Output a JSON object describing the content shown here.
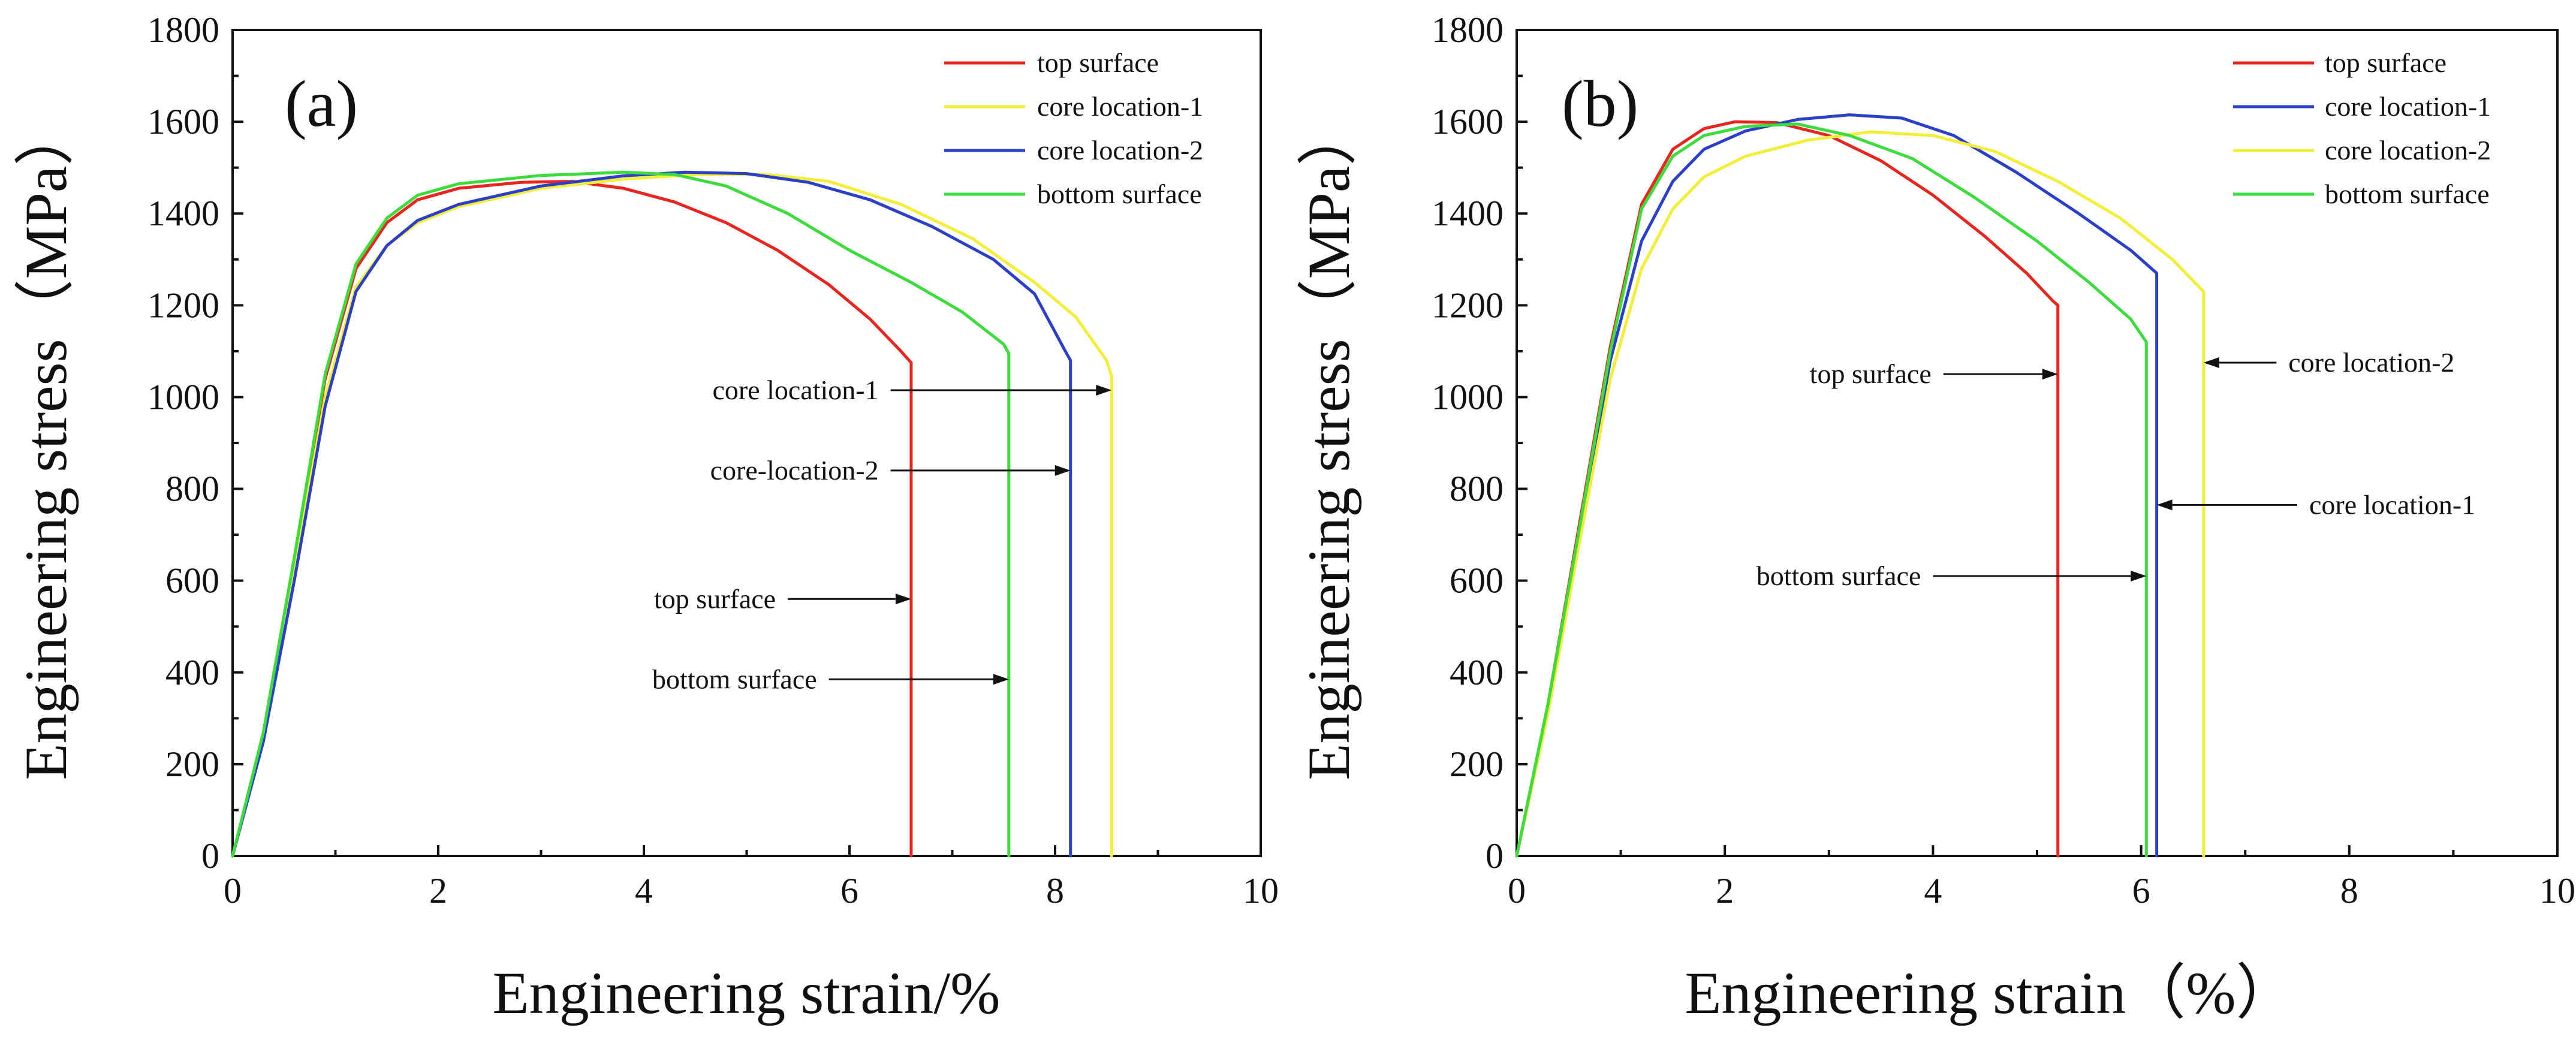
{
  "chart_data": [
    {
      "type": "line",
      "panel_label": "(a)",
      "xlabel": "Engineering strain/%",
      "ylabel": "Engineering stress（MPa）",
      "xlim": [
        0,
        10
      ],
      "ylim": [
        0,
        1800
      ],
      "xticks": [
        0,
        2,
        4,
        6,
        8,
        10
      ],
      "yticks": [
        0,
        200,
        400,
        600,
        800,
        1000,
        1200,
        1400,
        1600,
        1800
      ],
      "legend_position": "top-right",
      "series": [
        {
          "name": "top surface",
          "color": "#e8251e",
          "points": [
            [
              0,
              0
            ],
            [
              0.3,
              260
            ],
            [
              0.6,
              640
            ],
            [
              0.9,
              1040
            ],
            [
              1.2,
              1280
            ],
            [
              1.5,
              1380
            ],
            [
              1.8,
              1430
            ],
            [
              2.2,
              1455
            ],
            [
              2.8,
              1468
            ],
            [
              3.3,
              1470
            ],
            [
              3.8,
              1455
            ],
            [
              4.3,
              1425
            ],
            [
              4.8,
              1380
            ],
            [
              5.3,
              1320
            ],
            [
              5.8,
              1245
            ],
            [
              6.2,
              1170
            ],
            [
              6.5,
              1100
            ],
            [
              6.6,
              1075
            ],
            [
              6.6,
              0
            ]
          ]
        },
        {
          "name": "core location-1",
          "color": "#f2ee3a",
          "points": [
            [
              0,
              0
            ],
            [
              0.3,
              260
            ],
            [
              0.6,
              620
            ],
            [
              0.9,
              1000
            ],
            [
              1.2,
              1240
            ],
            [
              1.5,
              1330
            ],
            [
              1.8,
              1380
            ],
            [
              2.2,
              1415
            ],
            [
              3,
              1455
            ],
            [
              3.8,
              1475
            ],
            [
              4.5,
              1485
            ],
            [
              5.2,
              1485
            ],
            [
              5.8,
              1470
            ],
            [
              6.5,
              1420
            ],
            [
              7.2,
              1345
            ],
            [
              7.8,
              1250
            ],
            [
              8.2,
              1175
            ],
            [
              8.5,
              1080
            ],
            [
              8.55,
              1045
            ],
            [
              8.55,
              0
            ]
          ]
        },
        {
          "name": "core location-2",
          "color": "#2b3fc8",
          "points": [
            [
              0,
              0
            ],
            [
              0.3,
              250
            ],
            [
              0.6,
              600
            ],
            [
              0.9,
              980
            ],
            [
              1.2,
              1230
            ],
            [
              1.5,
              1330
            ],
            [
              1.8,
              1385
            ],
            [
              2.2,
              1420
            ],
            [
              3,
              1460
            ],
            [
              3.8,
              1482
            ],
            [
              4.4,
              1490
            ],
            [
              5,
              1487
            ],
            [
              5.6,
              1468
            ],
            [
              6.2,
              1430
            ],
            [
              6.8,
              1372
            ],
            [
              7.4,
              1300
            ],
            [
              7.8,
              1225
            ],
            [
              8.1,
              1100
            ],
            [
              8.15,
              1080
            ],
            [
              8.15,
              0
            ]
          ]
        },
        {
          "name": "bottom surface",
          "color": "#3ddc3d",
          "points": [
            [
              0,
              0
            ],
            [
              0.3,
              270
            ],
            [
              0.6,
              650
            ],
            [
              0.9,
              1050
            ],
            [
              1.2,
              1290
            ],
            [
              1.5,
              1390
            ],
            [
              1.8,
              1440
            ],
            [
              2.2,
              1465
            ],
            [
              3,
              1483
            ],
            [
              3.8,
              1490
            ],
            [
              4.3,
              1485
            ],
            [
              4.8,
              1460
            ],
            [
              5.4,
              1400
            ],
            [
              6,
              1320
            ],
            [
              6.6,
              1250
            ],
            [
              7.1,
              1185
            ],
            [
              7.5,
              1115
            ],
            [
              7.55,
              1095
            ],
            [
              7.55,
              0
            ]
          ]
        }
      ],
      "annotations": [
        {
          "text": "core location-1",
          "line_from": [
            6.4,
            1015
          ],
          "arrow_to": [
            8.55,
            1015
          ]
        },
        {
          "text": "core-location-2",
          "line_from": [
            6.4,
            840
          ],
          "arrow_to": [
            8.15,
            840
          ]
        },
        {
          "text": "top surface",
          "line_from": [
            5.4,
            560
          ],
          "arrow_to": [
            6.6,
            560
          ]
        },
        {
          "text": "bottom surface",
          "line_from": [
            5.8,
            385
          ],
          "arrow_to": [
            7.55,
            385
          ]
        }
      ]
    },
    {
      "type": "line",
      "panel_label": "(b)",
      "xlabel": "Engineering strain（%）",
      "ylabel": "Engineering stress（MPa）",
      "xlim": [
        0,
        10
      ],
      "ylim": [
        0,
        1800
      ],
      "xticks": [
        0,
        2,
        4,
        6,
        8,
        10
      ],
      "yticks": [
        0,
        200,
        400,
        600,
        800,
        1000,
        1200,
        1400,
        1600,
        1800
      ],
      "legend_position": "top-right",
      "series": [
        {
          "name": "top surface",
          "color": "#e8251e",
          "points": [
            [
              0,
              0
            ],
            [
              0.3,
              330
            ],
            [
              0.6,
              720
            ],
            [
              0.9,
              1110
            ],
            [
              1.2,
              1420
            ],
            [
              1.5,
              1540
            ],
            [
              1.8,
              1585
            ],
            [
              2.1,
              1600
            ],
            [
              2.5,
              1598
            ],
            [
              3,
              1570
            ],
            [
              3.5,
              1515
            ],
            [
              4,
              1440
            ],
            [
              4.5,
              1350
            ],
            [
              4.9,
              1270
            ],
            [
              5.15,
              1210
            ],
            [
              5.2,
              1200
            ],
            [
              5.2,
              0
            ]
          ]
        },
        {
          "name": "core location-1",
          "color": "#2b3fc8",
          "points": [
            [
              0,
              0
            ],
            [
              0.3,
              320
            ],
            [
              0.6,
              700
            ],
            [
              0.9,
              1080
            ],
            [
              1.2,
              1340
            ],
            [
              1.5,
              1470
            ],
            [
              1.8,
              1540
            ],
            [
              2.2,
              1580
            ],
            [
              2.7,
              1605
            ],
            [
              3.2,
              1615
            ],
            [
              3.7,
              1608
            ],
            [
              4.2,
              1570
            ],
            [
              4.8,
              1490
            ],
            [
              5.4,
              1400
            ],
            [
              5.9,
              1320
            ],
            [
              6.15,
              1270
            ],
            [
              6.15,
              0
            ]
          ]
        },
        {
          "name": "core location-2",
          "color": "#f2ee3a",
          "points": [
            [
              0,
              0
            ],
            [
              0.3,
              310
            ],
            [
              0.6,
              680
            ],
            [
              0.9,
              1040
            ],
            [
              1.2,
              1280
            ],
            [
              1.5,
              1410
            ],
            [
              1.8,
              1480
            ],
            [
              2.2,
              1525
            ],
            [
              2.8,
              1560
            ],
            [
              3.4,
              1578
            ],
            [
              4,
              1570
            ],
            [
              4.6,
              1535
            ],
            [
              5.2,
              1470
            ],
            [
              5.8,
              1390
            ],
            [
              6.3,
              1300
            ],
            [
              6.6,
              1230
            ],
            [
              6.6,
              0
            ]
          ]
        },
        {
          "name": "bottom surface",
          "color": "#3ddc3d",
          "points": [
            [
              0,
              0
            ],
            [
              0.3,
              330
            ],
            [
              0.6,
              710
            ],
            [
              0.9,
              1100
            ],
            [
              1.2,
              1410
            ],
            [
              1.5,
              1525
            ],
            [
              1.8,
              1570
            ],
            [
              2.2,
              1590
            ],
            [
              2.7,
              1595
            ],
            [
              3.2,
              1570
            ],
            [
              3.8,
              1520
            ],
            [
              4.4,
              1435
            ],
            [
              5,
              1340
            ],
            [
              5.5,
              1250
            ],
            [
              5.9,
              1170
            ],
            [
              6.05,
              1120
            ],
            [
              6.05,
              0
            ]
          ]
        }
      ],
      "annotations": [
        {
          "text": "top surface",
          "line_from": [
            4.1,
            1050
          ],
          "arrow_to": [
            5.2,
            1050
          ]
        },
        {
          "text": "core location-2",
          "line_from": [
            7.3,
            1075
          ],
          "arrow_to": [
            6.6,
            1075
          ]
        },
        {
          "text": "core location-1",
          "line_from": [
            7.5,
            765
          ],
          "arrow_to": [
            6.15,
            765
          ]
        },
        {
          "text": "bottom surface",
          "line_from": [
            4.0,
            610
          ],
          "arrow_to": [
            6.05,
            610
          ]
        }
      ]
    }
  ]
}
